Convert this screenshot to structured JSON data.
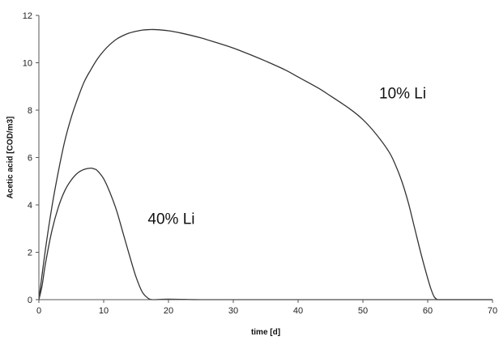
{
  "chart_data": {
    "type": "line",
    "title": "",
    "xlabel": "time [d]",
    "ylabel": "Acetic acid [COD/m3]",
    "xlim": [
      0,
      70
    ],
    "ylim": [
      0,
      12
    ],
    "xticks": [
      "0",
      "10",
      "20",
      "30",
      "40",
      "50",
      "60",
      "70"
    ],
    "yticks": [
      "0",
      "2",
      "4",
      "6",
      "8",
      "10",
      "12"
    ],
    "grid": false,
    "legend": "none",
    "series": [
      {
        "name": "10% Li",
        "color": "#333333",
        "x": [
          0,
          1,
          2,
          3,
          4,
          5,
          6,
          7,
          8,
          9,
          10,
          11,
          12,
          13,
          14,
          15,
          16,
          17,
          18,
          20,
          22,
          25,
          28,
          30,
          33,
          35,
          38,
          40,
          43,
          45,
          48,
          50,
          52,
          54,
          55,
          56,
          57,
          58,
          59,
          60,
          60.5,
          61,
          61.5,
          62,
          65,
          70
        ],
        "y": [
          0,
          2.1,
          3.9,
          5.4,
          6.7,
          7.7,
          8.5,
          9.2,
          9.7,
          10.15,
          10.5,
          10.78,
          11.0,
          11.15,
          11.26,
          11.33,
          11.38,
          11.4,
          11.4,
          11.35,
          11.25,
          11.05,
          10.8,
          10.62,
          10.3,
          10.07,
          9.7,
          9.4,
          8.95,
          8.6,
          8.05,
          7.6,
          7.0,
          6.25,
          5.7,
          5.0,
          4.1,
          3.0,
          1.9,
          0.9,
          0.45,
          0.12,
          0,
          0,
          0,
          0
        ]
      },
      {
        "name": "40% Li",
        "color": "#333333",
        "x": [
          0,
          0.5,
          1,
          2,
          3,
          4,
          5,
          6,
          7,
          8,
          8.5,
          9,
          10,
          11,
          12,
          13,
          14,
          15,
          16,
          17,
          17.5,
          18,
          20,
          25,
          30,
          40,
          50,
          60,
          70
        ],
        "y": [
          0,
          0.6,
          1.5,
          2.9,
          3.9,
          4.6,
          5.05,
          5.35,
          5.5,
          5.55,
          5.52,
          5.45,
          5.1,
          4.5,
          3.75,
          2.8,
          1.85,
          0.95,
          0.3,
          0.03,
          0,
          0,
          0.02,
          0,
          0,
          0,
          0,
          0,
          0
        ]
      }
    ],
    "annotations": [
      {
        "text": "10% Li",
        "x": 52.5,
        "y": 8.5
      },
      {
        "text": "40% Li",
        "x": 16.8,
        "y": 3.2
      }
    ]
  }
}
